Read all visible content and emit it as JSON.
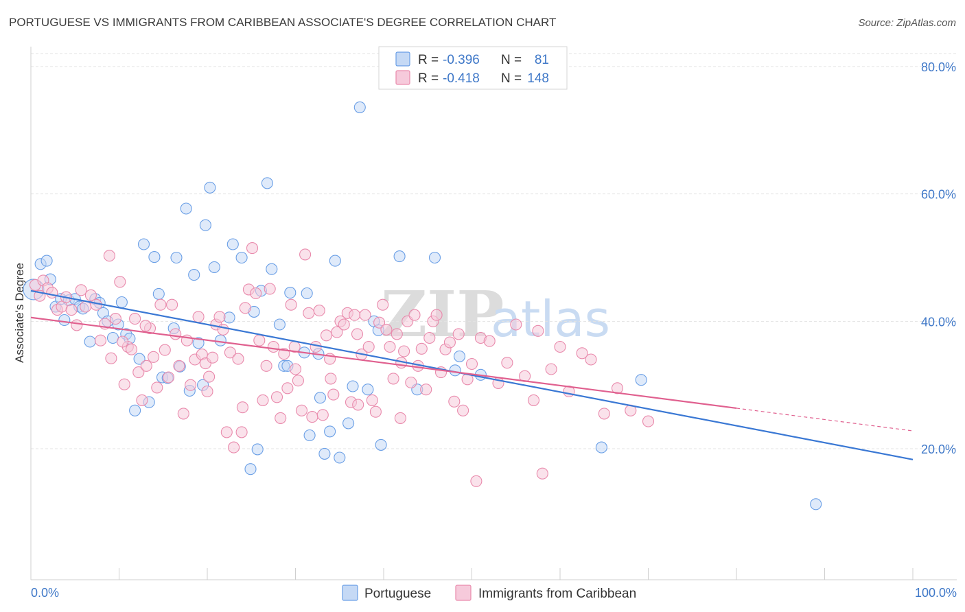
{
  "chart_data": {
    "type": "scatter",
    "title": "PORTUGUESE VS IMMIGRANTS FROM CARIBBEAN ASSOCIATE'S DEGREE CORRELATION CHART",
    "source": "Source: ZipAtlas.com",
    "ylabel": "Associate's Degree",
    "xlabel": "",
    "xlim": [
      0,
      100
    ],
    "ylim": [
      2,
      82
    ],
    "x_tick_labels": {
      "left": "0.0%",
      "right": "100.0%"
    },
    "y_ticks": [
      {
        "value": 20,
        "label": "20.0%"
      },
      {
        "value": 40,
        "label": "40.0%"
      },
      {
        "value": 60,
        "label": "60.0%"
      },
      {
        "value": 80,
        "label": "80.0%"
      }
    ],
    "watermark": {
      "zip": "ZIP",
      "atlas": "atlas"
    },
    "legend": {
      "rows": [
        {
          "r_label": "R =",
          "r_value": "-0.396",
          "n_label": "N =",
          "n_value": "81"
        },
        {
          "r_label": "R =",
          "r_value": "-0.418",
          "n_label": "N =",
          "n_value": "148"
        }
      ]
    },
    "series": [
      {
        "name": "Portuguese",
        "color": "#6a9fe6",
        "fill": "#c5d9f5",
        "line_color": "#3a78d4",
        "trend": {
          "x0": 0,
          "y0": 44.8,
          "x1": 100,
          "y1": 18.3,
          "solid_until": 100
        },
        "points": [
          [
            0.3,
            45.0
          ],
          [
            1.1,
            49.0
          ],
          [
            1.8,
            49.5
          ],
          [
            2.2,
            46.6
          ],
          [
            2.8,
            42.3
          ],
          [
            3.4,
            43.5
          ],
          [
            3.8,
            40.2
          ],
          [
            4.3,
            43.3
          ],
          [
            5.0,
            43.5
          ],
          [
            5.5,
            42.3
          ],
          [
            5.9,
            42.0
          ],
          [
            6.7,
            36.8
          ],
          [
            7.3,
            43.5
          ],
          [
            7.8,
            42.9
          ],
          [
            8.2,
            41.3
          ],
          [
            8.7,
            40.0
          ],
          [
            9.3,
            37.4
          ],
          [
            9.9,
            39.5
          ],
          [
            10.3,
            43.0
          ],
          [
            10.8,
            38.0
          ],
          [
            11.2,
            37.3
          ],
          [
            11.8,
            26.0
          ],
          [
            12.3,
            34.1
          ],
          [
            12.8,
            52.1
          ],
          [
            13.4,
            27.3
          ],
          [
            14.0,
            50.1
          ],
          [
            14.5,
            44.3
          ],
          [
            14.9,
            31.2
          ],
          [
            15.5,
            31.1
          ],
          [
            16.2,
            38.9
          ],
          [
            16.5,
            50.0
          ],
          [
            16.9,
            32.9
          ],
          [
            17.6,
            57.7
          ],
          [
            18.0,
            29.1
          ],
          [
            18.5,
            47.3
          ],
          [
            19.0,
            36.6
          ],
          [
            19.5,
            30.0
          ],
          [
            19.8,
            55.1
          ],
          [
            20.3,
            61.0
          ],
          [
            20.8,
            48.5
          ],
          [
            21.5,
            37.0
          ],
          [
            22.5,
            40.6
          ],
          [
            22.9,
            52.1
          ],
          [
            23.9,
            50.0
          ],
          [
            24.9,
            16.8
          ],
          [
            25.3,
            41.5
          ],
          [
            25.7,
            19.9
          ],
          [
            26.1,
            44.8
          ],
          [
            26.8,
            61.7
          ],
          [
            27.3,
            48.2
          ],
          [
            28.2,
            39.5
          ],
          [
            28.7,
            33.0
          ],
          [
            29.1,
            33.0
          ],
          [
            29.4,
            44.5
          ],
          [
            31.3,
            44.4
          ],
          [
            31.0,
            35.1
          ],
          [
            31.6,
            22.1
          ],
          [
            32.6,
            34.9
          ],
          [
            32.8,
            28.0
          ],
          [
            33.3,
            19.2
          ],
          [
            33.9,
            22.7
          ],
          [
            34.5,
            49.5
          ],
          [
            35.0,
            18.6
          ],
          [
            36.0,
            24.0
          ],
          [
            36.5,
            29.8
          ],
          [
            37.3,
            73.6
          ],
          [
            38.2,
            29.3
          ],
          [
            38.9,
            40.0
          ],
          [
            39.4,
            38.6
          ],
          [
            39.7,
            20.6
          ],
          [
            41.8,
            50.2
          ],
          [
            43.8,
            29.3
          ],
          [
            45.8,
            50.0
          ],
          [
            48.1,
            32.3
          ],
          [
            48.6,
            34.5
          ],
          [
            51.0,
            31.6
          ],
          [
            64.7,
            20.2
          ],
          [
            69.2,
            30.8
          ],
          [
            89.0,
            11.3
          ]
        ],
        "sizes": {
          "0.3,45.0": "large"
        }
      },
      {
        "name": "Immigrants from Caribbean",
        "color": "#e98aac",
        "fill": "#f6cadb",
        "line_color": "#e0608f",
        "trend": {
          "x0": 0,
          "y0": 40.6,
          "x1": 100,
          "y1": 22.8,
          "solid_until": 80
        },
        "points": [
          [
            0.5,
            45.7
          ],
          [
            1.0,
            44.0
          ],
          [
            1.4,
            46.4
          ],
          [
            1.9,
            45.2
          ],
          [
            2.4,
            44.5
          ],
          [
            3.0,
            41.8
          ],
          [
            3.5,
            42.3
          ],
          [
            4.0,
            43.8
          ],
          [
            4.6,
            41.8
          ],
          [
            5.2,
            39.4
          ],
          [
            5.7,
            44.9
          ],
          [
            6.2,
            42.3
          ],
          [
            6.8,
            44.1
          ],
          [
            7.4,
            42.6
          ],
          [
            7.9,
            37.0
          ],
          [
            8.4,
            39.6
          ],
          [
            8.9,
            50.3
          ],
          [
            9.1,
            34.2
          ],
          [
            9.6,
            40.4
          ],
          [
            10.1,
            46.2
          ],
          [
            10.6,
            30.1
          ],
          [
            11.0,
            36.0
          ],
          [
            11.4,
            35.6
          ],
          [
            11.8,
            40.4
          ],
          [
            12.2,
            32.0
          ],
          [
            12.6,
            27.6
          ],
          [
            13.1,
            33.0
          ],
          [
            13.5,
            38.9
          ],
          [
            13.9,
            34.4
          ],
          [
            14.3,
            29.6
          ],
          [
            14.7,
            42.6
          ],
          [
            15.2,
            35.5
          ],
          [
            15.6,
            31.2
          ],
          [
            16.0,
            42.6
          ],
          [
            16.4,
            38.0
          ],
          [
            16.8,
            33.0
          ],
          [
            17.3,
            25.5
          ],
          [
            17.7,
            37.0
          ],
          [
            18.1,
            30.0
          ],
          [
            18.6,
            34.0
          ],
          [
            19.0,
            40.7
          ],
          [
            19.4,
            34.8
          ],
          [
            19.8,
            33.4
          ],
          [
            20.2,
            31.3
          ],
          [
            20.6,
            34.3
          ],
          [
            21.0,
            39.5
          ],
          [
            21.4,
            40.7
          ],
          [
            21.8,
            38.7
          ],
          [
            22.2,
            22.6
          ],
          [
            22.6,
            35.1
          ],
          [
            23.0,
            20.2
          ],
          [
            23.5,
            34.1
          ],
          [
            23.9,
            22.6
          ],
          [
            24.3,
            42.1
          ],
          [
            24.7,
            45.0
          ],
          [
            25.1,
            51.5
          ],
          [
            25.5,
            44.4
          ],
          [
            25.9,
            37.0
          ],
          [
            26.3,
            27.6
          ],
          [
            26.7,
            33.0
          ],
          [
            27.1,
            45.1
          ],
          [
            27.5,
            36.0
          ],
          [
            27.9,
            28.1
          ],
          [
            28.3,
            24.8
          ],
          [
            28.7,
            34.9
          ],
          [
            29.1,
            29.5
          ],
          [
            29.5,
            42.6
          ],
          [
            29.9,
            36.0
          ],
          [
            30.3,
            30.7
          ],
          [
            30.7,
            26.0
          ],
          [
            31.1,
            50.5
          ],
          [
            31.5,
            41.3
          ],
          [
            31.9,
            25.0
          ],
          [
            32.3,
            36.0
          ],
          [
            32.7,
            41.7
          ],
          [
            33.1,
            25.3
          ],
          [
            33.5,
            37.8
          ],
          [
            33.9,
            34.1
          ],
          [
            34.3,
            28.5
          ],
          [
            34.7,
            38.3
          ],
          [
            35.1,
            40.0
          ],
          [
            35.5,
            39.5
          ],
          [
            35.9,
            41.3
          ],
          [
            36.3,
            27.3
          ],
          [
            36.7,
            41.0
          ],
          [
            37.1,
            26.9
          ],
          [
            37.5,
            34.8
          ],
          [
            37.9,
            41.0
          ],
          [
            38.3,
            36.0
          ],
          [
            38.7,
            27.6
          ],
          [
            39.1,
            25.8
          ],
          [
            39.5,
            39.8
          ],
          [
            39.9,
            42.6
          ],
          [
            40.3,
            38.7
          ],
          [
            40.7,
            36.0
          ],
          [
            41.1,
            31.0
          ],
          [
            41.5,
            38.0
          ],
          [
            41.9,
            24.8
          ],
          [
            42.3,
            35.3
          ],
          [
            42.7,
            40.0
          ],
          [
            43.1,
            30.4
          ],
          [
            43.5,
            41.0
          ],
          [
            43.9,
            33.0
          ],
          [
            44.3,
            35.7
          ],
          [
            44.8,
            29.3
          ],
          [
            45.2,
            37.4
          ],
          [
            45.6,
            40.0
          ],
          [
            46.0,
            41.0
          ],
          [
            46.5,
            32.0
          ],
          [
            47.0,
            35.6
          ],
          [
            47.5,
            36.7
          ],
          [
            48.0,
            27.4
          ],
          [
            48.5,
            38.0
          ],
          [
            49.0,
            26.0
          ],
          [
            49.5,
            30.9
          ],
          [
            50.0,
            33.3
          ],
          [
            50.5,
            14.9
          ],
          [
            51.0,
            37.4
          ],
          [
            52.0,
            36.9
          ],
          [
            53.0,
            30.3
          ],
          [
            54.0,
            33.5
          ],
          [
            55.0,
            39.5
          ],
          [
            56.0,
            31.4
          ],
          [
            57.0,
            27.6
          ],
          [
            57.5,
            38.5
          ],
          [
            58.0,
            16.1
          ],
          [
            59.0,
            32.5
          ],
          [
            60.0,
            36.0
          ],
          [
            61.0,
            29.0
          ],
          [
            62.5,
            35.0
          ],
          [
            63.5,
            34.0
          ],
          [
            65.0,
            25.5
          ],
          [
            66.5,
            29.5
          ],
          [
            68.0,
            26.0
          ],
          [
            70.0,
            24.3
          ],
          [
            10.4,
            36.8
          ],
          [
            13.0,
            39.3
          ],
          [
            20.0,
            29.0
          ],
          [
            24.0,
            26.5
          ],
          [
            30.0,
            32.5
          ],
          [
            34.0,
            31.0
          ],
          [
            37.0,
            38.0
          ],
          [
            42.0,
            33.5
          ]
        ]
      }
    ]
  },
  "bottom_legend": [
    "Portuguese",
    "Immigrants from Caribbean"
  ]
}
